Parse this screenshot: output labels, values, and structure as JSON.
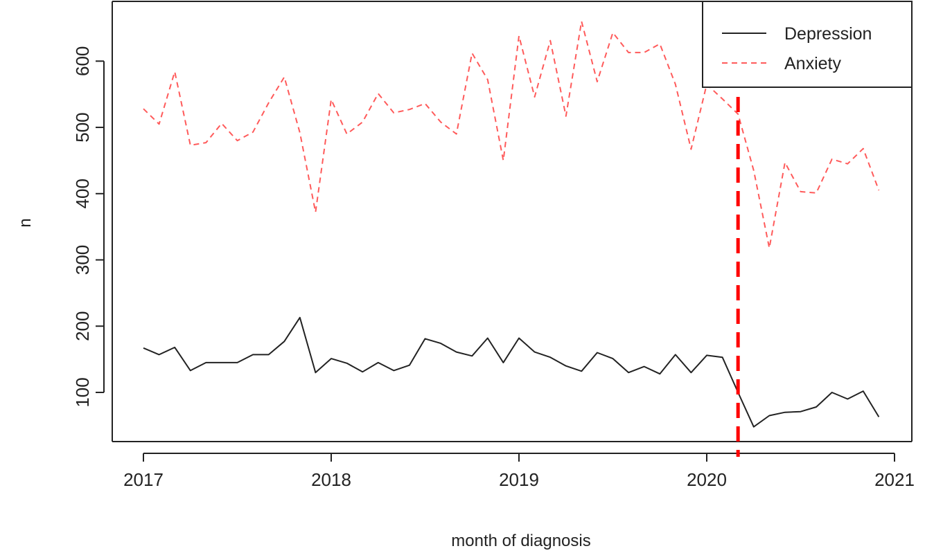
{
  "chart_data": {
    "type": "line",
    "xlabel": "month of diagnosis",
    "ylabel": "n",
    "xlim": [
      2017,
      2021
    ],
    "ylim": [
      40,
      670
    ],
    "x_ticks": [
      "2017",
      "2018",
      "2019",
      "2020",
      "2021"
    ],
    "y_ticks": [
      "100",
      "200",
      "300",
      "400",
      "500",
      "600"
    ],
    "grid": false,
    "legend_position": "top-right",
    "x_start": "2017-01",
    "x_step": "1 month",
    "series": [
      {
        "name": "Depression",
        "style": "solid",
        "color": "#222222",
        "values": [
          167,
          157,
          168,
          133,
          145,
          145,
          145,
          157,
          157,
          177,
          213,
          130,
          151,
          144,
          131,
          145,
          133,
          141,
          181,
          174,
          161,
          155,
          182,
          145,
          182,
          161,
          153,
          140,
          132,
          160,
          151,
          130,
          139,
          128,
          157,
          130,
          156,
          153,
          100,
          48,
          65,
          70,
          71,
          78,
          100,
          90,
          102,
          63
        ]
      },
      {
        "name": "Anxiety",
        "style": "dashed",
        "color": "#ff5a5a",
        "values": [
          528,
          505,
          584,
          473,
          477,
          506,
          480,
          493,
          537,
          576,
          492,
          372,
          542,
          490,
          508,
          551,
          522,
          527,
          536,
          508,
          490,
          612,
          572,
          450,
          638,
          546,
          631,
          517,
          660,
          569,
          643,
          613,
          613,
          626,
          565,
          467,
          565,
          543,
          520,
          435,
          318,
          447,
          403,
          401,
          452,
          445,
          468,
          405
        ]
      }
    ],
    "annotations": [
      {
        "type": "vertical-dashed-line",
        "x": "2020-03",
        "color": "#ff0000"
      }
    ]
  }
}
